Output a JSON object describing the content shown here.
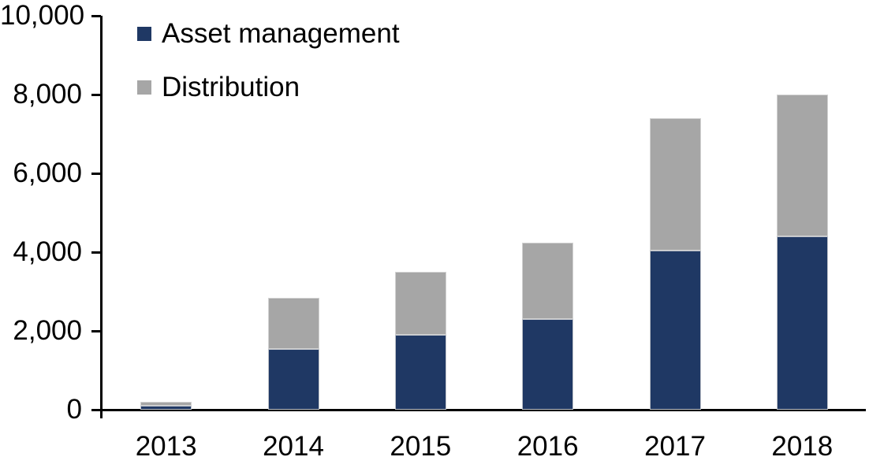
{
  "chart_data": {
    "type": "bar",
    "stacked": true,
    "title": "",
    "xlabel": "",
    "ylabel": "",
    "categories": [
      "2013",
      "2014",
      "2015",
      "2016",
      "2017",
      "2018"
    ],
    "series": [
      {
        "name": "Asset management",
        "color": "#1F3864",
        "values": [
          100,
          1550,
          1900,
          2300,
          4050,
          4400
        ]
      },
      {
        "name": "Distribution",
        "color": "#A6A6A6",
        "values": [
          100,
          1300,
          1600,
          1950,
          3350,
          3600
        ]
      }
    ],
    "stacked_totals": [
      200,
      2850,
      3500,
      4250,
      7400,
      8000
    ],
    "y_axis": {
      "min": 0,
      "max": 10000,
      "tick_step": 2000,
      "tick_labels": [
        "0",
        "2,000",
        "4,000",
        "6,000",
        "8,000",
        "10,000"
      ]
    },
    "legend_position": "top-left",
    "grid": false
  },
  "colors": {
    "axis": "#000000",
    "text": "#000000",
    "background": "#FFFFFF"
  }
}
